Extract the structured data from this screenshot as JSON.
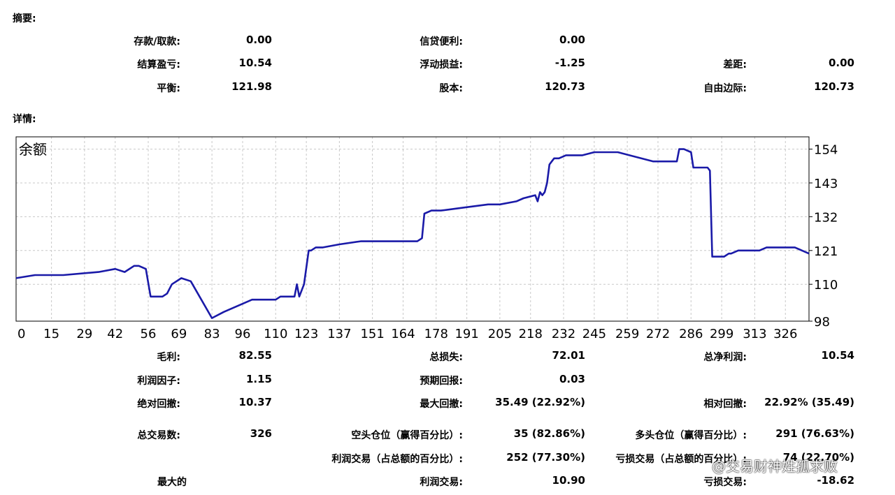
{
  "summary": {
    "title": "摘要:",
    "deposit_label": "存款/取款:",
    "deposit_value": "0.00",
    "credit_label": "信贷便利:",
    "credit_value": "0.00",
    "closed_pl_label": "结算盈亏:",
    "closed_pl_value": "10.54",
    "floating_pl_label": "浮动损益:",
    "floating_pl_value": "-1.25",
    "spread_label": "差距:",
    "spread_value": "0.00",
    "balance_label": "平衡:",
    "balance_value": "121.98",
    "equity_label": "股本:",
    "equity_value": "120.73",
    "free_margin_label": "自由边际:",
    "free_margin_value": "120.73"
  },
  "details": {
    "title": "详情:"
  },
  "stats": {
    "gross_profit_label": "毛利:",
    "gross_profit_value": "82.55",
    "gross_loss_label": "总损失:",
    "gross_loss_value": "72.01",
    "net_profit_label": "总净利润:",
    "net_profit_value": "10.54",
    "profit_factor_label": "利润因子:",
    "profit_factor_value": "1.15",
    "expected_payoff_label": "预期回报:",
    "expected_payoff_value": "0.03",
    "abs_drawdown_label": "绝对回撤:",
    "abs_drawdown_value": "10.37",
    "max_drawdown_label": "最大回撤:",
    "max_drawdown_value": "35.49 (22.92%)",
    "rel_drawdown_label": "相对回撤:",
    "rel_drawdown_value": "22.92% (35.49)",
    "total_trades_label": "总交易数:",
    "total_trades_value": "326",
    "short_label": "空头仓位（赢得百分比）:",
    "short_value": "35 (82.86%)",
    "long_label": "多头仓位（赢得百分比）:",
    "long_value": "291 (76.63%)",
    "profit_trades_label": "利润交易（占总额的百分比）:",
    "profit_trades_value": "252 (77.30%)",
    "loss_trades_label": "亏损交易（占总额的百分比）:",
    "loss_trades_value": "74 (22.70%)",
    "largest_label": "最大的",
    "largest_profit_label": "利润交易:",
    "largest_profit_value": "10.90",
    "largest_loss_label": "亏损交易:",
    "largest_loss_value": "-18.62"
  },
  "watermark": "@交易财神姓孤求败",
  "chart_data": {
    "type": "line",
    "title": "余额",
    "series": [
      {
        "color": "#1a1aa8",
        "x": [
          0,
          8,
          20,
          35,
          42,
          46,
          50,
          52,
          55,
          57,
          62,
          64,
          66,
          70,
          74,
          83,
          88,
          100,
          110,
          112,
          118,
          119,
          120,
          122,
          124,
          125,
          127,
          130,
          137,
          146,
          160,
          168,
          169,
          170,
          172,
          173,
          176,
          179,
          180,
          190,
          200,
          205,
          212,
          215,
          220,
          221,
          222,
          223,
          224,
          225,
          226,
          227,
          228,
          229,
          230,
          233,
          235,
          240,
          245,
          255,
          270,
          280,
          281,
          283,
          286,
          287,
          288,
          290,
          291,
          292,
          293,
          294,
          295,
          300,
          302,
          303,
          306,
          312,
          315,
          318,
          320,
          323,
          330,
          333,
          336
        ],
        "y": [
          112,
          113,
          113,
          114,
          115,
          114,
          116,
          116,
          115,
          106,
          106,
          107,
          110,
          112,
          111,
          99,
          101,
          105,
          105,
          106,
          106,
          110,
          106,
          110,
          121,
          121,
          122,
          122,
          123,
          124,
          124,
          124,
          124,
          124,
          125,
          133,
          134,
          134,
          134,
          135,
          136,
          136,
          137,
          138,
          139,
          137,
          140,
          139,
          140,
          143,
          149,
          150,
          151,
          151,
          151,
          152,
          152,
          152,
          153,
          153,
          150,
          150,
          154,
          154,
          153,
          148,
          148,
          148,
          148,
          148,
          148,
          147,
          119,
          119,
          120,
          120,
          121,
          121,
          121,
          122,
          122,
          122,
          122,
          121,
          120
        ]
      }
    ],
    "x_ticks": [
      "0",
      "15",
      "29",
      "42",
      "56",
      "69",
      "83",
      "96",
      "110",
      "123",
      "137",
      "151",
      "164",
      "178",
      "191",
      "205",
      "218",
      "232",
      "245",
      "259",
      "272",
      "286",
      "299",
      "313",
      "326"
    ],
    "y_ticks": [
      "98",
      "110",
      "121",
      "132",
      "143",
      "154"
    ],
    "xlim": [
      0,
      336
    ],
    "ylim": [
      98,
      158
    ],
    "grid": true
  }
}
